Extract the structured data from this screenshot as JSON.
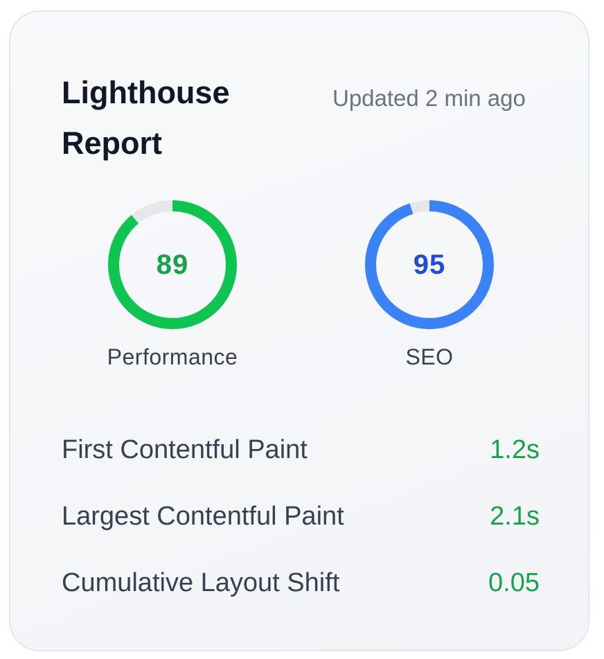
{
  "header": {
    "title": "Lighthouse Report",
    "updated": "Updated 2 min ago"
  },
  "scores": [
    {
      "label": "Performance",
      "value": "89",
      "fraction": 0.89,
      "ring_color": "#0fc451",
      "text_color": "#16a34a"
    },
    {
      "label": "SEO",
      "value": "95",
      "fraction": 0.95,
      "ring_color": "#3b82f6",
      "text_color": "#1d4ed8"
    }
  ],
  "ring_track_color": "#e5e7eb",
  "metrics": [
    {
      "name": "First Contentful Paint",
      "value": "1.2s"
    },
    {
      "name": "Largest Contentful Paint",
      "value": "2.1s"
    },
    {
      "name": "Cumulative Layout Shift",
      "value": "0.05"
    }
  ],
  "metric_value_color": "#16a34a"
}
